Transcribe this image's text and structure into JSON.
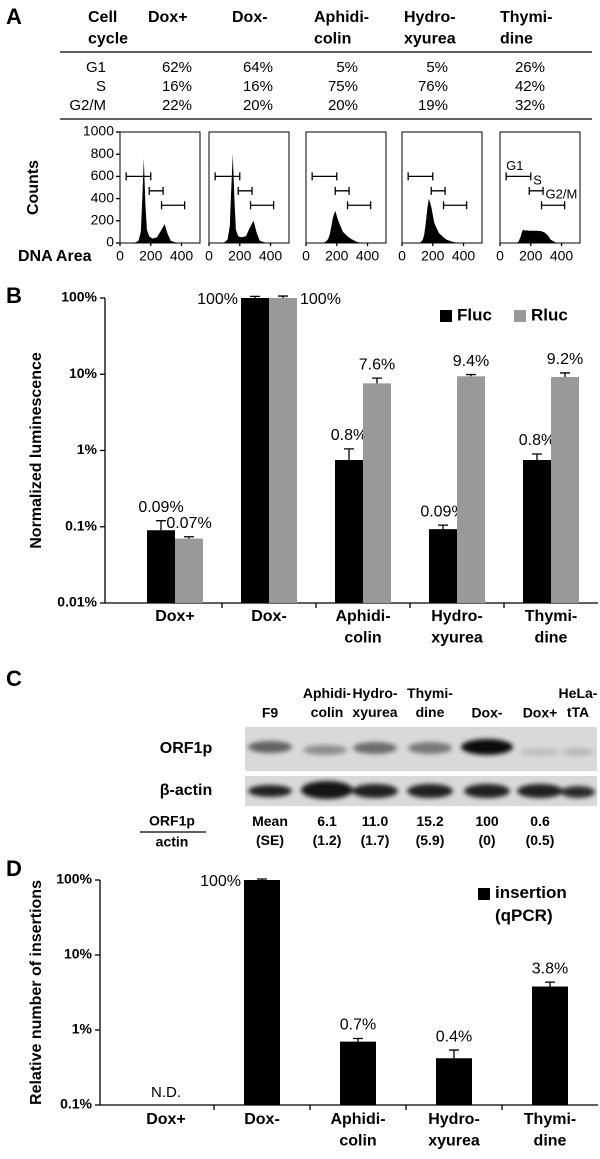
{
  "panel_labels": [
    "A",
    "B",
    "C",
    "D"
  ],
  "table": {
    "header": [
      "Cell\ncycle",
      "Dox+",
      "Dox-",
      "Aphidi-\ncolin",
      "Hydro-\nxyurea",
      "Thymi-\ndine"
    ],
    "rows": [
      [
        "G1",
        "62%",
        "64%",
        "5%",
        "5%",
        "26%"
      ],
      [
        "S",
        "16%",
        "16%",
        "75%",
        "76%",
        "42%"
      ],
      [
        "G2/M",
        "22%",
        "20%",
        "20%",
        "19%",
        "32%"
      ]
    ]
  },
  "chart_data": [
    {
      "type": "area",
      "ylabel": "Counts",
      "xlabel": "DNA Area",
      "x": [
        60,
        100,
        120,
        135,
        145,
        155,
        165,
        175,
        190,
        210,
        240,
        270,
        290,
        310,
        330,
        360,
        400
      ],
      "xlim": [
        0,
        520
      ],
      "xticks": [
        0,
        200,
        400
      ],
      "ylim": [
        0,
        1000
      ],
      "yticks": [
        0,
        200,
        400,
        600,
        800,
        1000
      ],
      "color": "#000000",
      "series": [
        {
          "values": [
            0,
            5,
            20,
            100,
            400,
            760,
            350,
            120,
            60,
            40,
            50,
            120,
            170,
            80,
            20,
            5,
            0
          ]
        },
        {
          "values": [
            0,
            5,
            30,
            150,
            500,
            800,
            400,
            120,
            60,
            50,
            60,
            150,
            200,
            90,
            20,
            5,
            0
          ]
        },
        {
          "values": [
            0,
            0,
            5,
            20,
            40,
            80,
            150,
            230,
            290,
            200,
            100,
            60,
            40,
            25,
            10,
            3,
            0
          ]
        },
        {
          "values": [
            0,
            0,
            5,
            30,
            80,
            180,
            320,
            400,
            330,
            180,
            90,
            50,
            30,
            20,
            10,
            3,
            0
          ]
        },
        {
          "values": [
            0,
            0,
            10,
            60,
            110,
            120,
            110,
            115,
            110,
            110,
            110,
            105,
            95,
            70,
            30,
            5,
            0
          ]
        }
      ],
      "gates": [
        {
          "label": "G1",
          "range": [
            40,
            200
          ]
        },
        {
          "label": "S",
          "range": [
            190,
            280
          ]
        },
        {
          "label": "G2/M",
          "range": [
            270,
            420
          ]
        }
      ]
    },
    {
      "type": "bar",
      "log": true,
      "ylabel": "Normalized luminescence",
      "categories": [
        "Dox+",
        "Dox-",
        "Aphidi-\ncolin",
        "Hydro-\nxyurea",
        "Thymi-\ndine"
      ],
      "ylim": [
        0.01,
        100
      ],
      "yticks": [
        {
          "value": 0.01,
          "label": "0.01%"
        },
        {
          "value": 0.1,
          "label": "0.1%"
        },
        {
          "value": 1,
          "label": "1%"
        },
        {
          "value": 10,
          "label": "10%"
        },
        {
          "value": 100,
          "label": "100%"
        }
      ],
      "legend": "top-right",
      "series": [
        {
          "name": "Fluc",
          "color": "#000000",
          "values": [
            0.09,
            100,
            0.75,
            0.093,
            0.75
          ],
          "errors": [
            0.03,
            5,
            0.3,
            0.012,
            0.15
          ],
          "value_labels": [
            "0.09%",
            "100%",
            "0.8%",
            "0.09%",
            "0.8%"
          ]
        },
        {
          "name": "Rluc",
          "color": "#999999",
          "values": [
            0.07,
            100,
            7.6,
            9.4,
            9.2
          ],
          "errors": [
            0.004,
            6,
            1.3,
            0.5,
            1.2
          ],
          "value_labels": [
            "0.07%",
            "100%",
            "7.6%",
            "9.4%",
            "9.2%"
          ]
        }
      ]
    },
    {
      "type": "bar",
      "log": true,
      "ylabel": "Relative number of insertions",
      "categories": [
        "Dox+",
        "Dox-",
        "Aphidi-\ncolin",
        "Hydro-\nxyurea",
        "Thymi-\ndine"
      ],
      "ylim": [
        0.1,
        100
      ],
      "yticks": [
        {
          "value": 0.1,
          "label": "0.1%"
        },
        {
          "value": 1,
          "label": "1%"
        },
        {
          "value": 10,
          "label": "10%"
        },
        {
          "value": 100,
          "label": "100%"
        }
      ],
      "legend": "top-right",
      "series": [
        {
          "name": "insertion\n(qPCR)",
          "color": "#000000",
          "values": [
            null,
            100,
            0.7,
            0.42,
            3.8
          ],
          "errors": [
            null,
            3,
            0.07,
            0.12,
            0.55
          ],
          "value_labels": [
            "N.D.",
            "100%",
            "0.7%",
            "0.4%",
            "3.8%"
          ]
        }
      ]
    }
  ],
  "blot": {
    "lanes": [
      "F9",
      "Aphidi-\ncolin",
      "Hydro-\nxyurea",
      "Thymi-\ndine",
      "Dox-",
      "Dox+",
      "HeLa-\ntTA"
    ],
    "rows": [
      "ORF1p",
      "β-actin"
    ],
    "ratio": [
      "ORF1p",
      "actin"
    ],
    "quant": [
      "Mean\n(SE)",
      "6.1\n(1.2)",
      "11.0\n(1.7)",
      "15.2\n(5.9)",
      "100\n(0)",
      "0.6\n(0.5)"
    ]
  }
}
